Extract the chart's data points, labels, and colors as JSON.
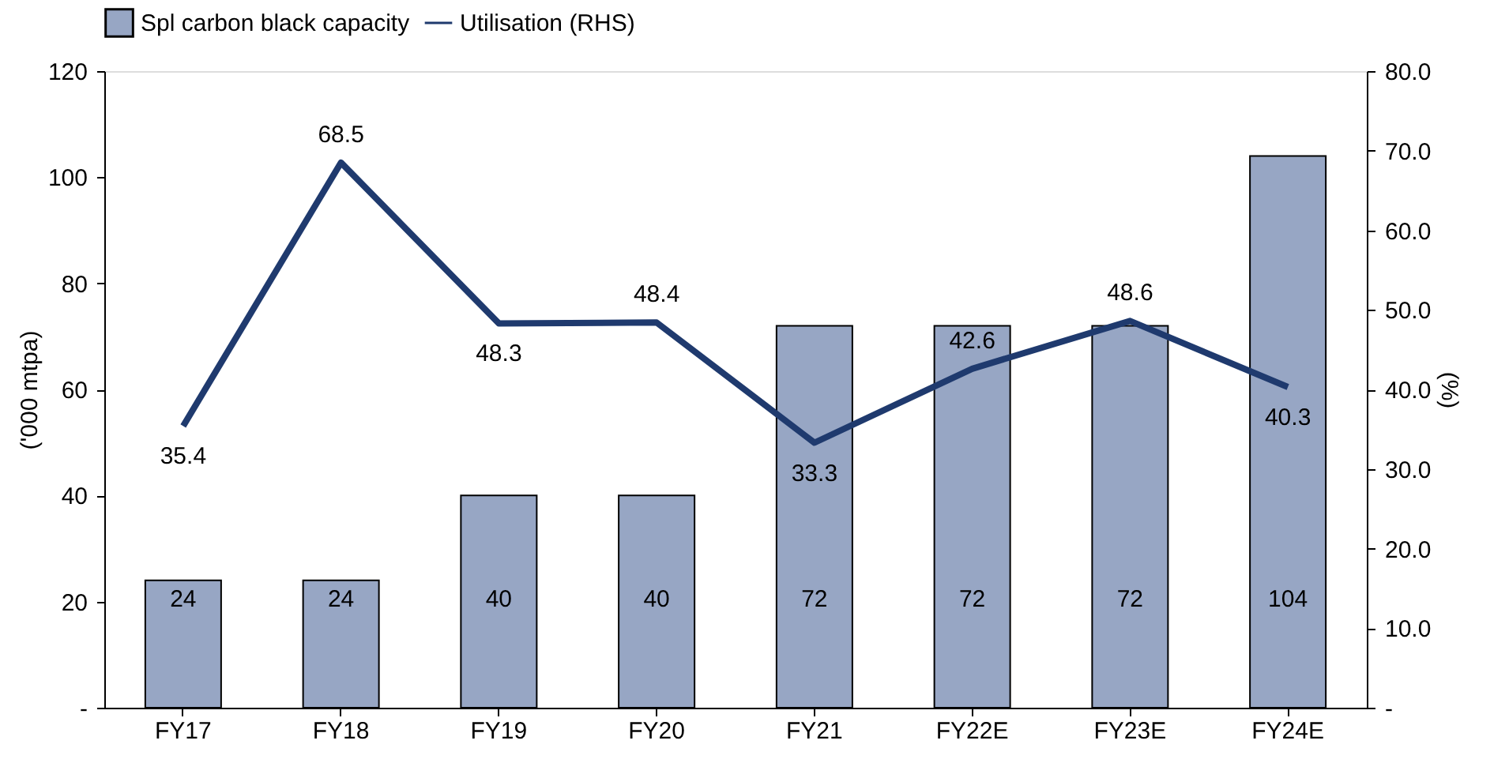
{
  "chart_data": {
    "type": "bar",
    "categories": [
      "FY17",
      "FY18",
      "FY19",
      "FY20",
      "FY21",
      "FY22E",
      "FY23E",
      "FY24E"
    ],
    "ylabel": "('000 mtpa)",
    "y2label": "(%)",
    "ylim": [
      0,
      120
    ],
    "yticks": [
      {
        "value": 0,
        "label": "-"
      },
      20,
      40,
      60,
      80,
      100,
      120
    ],
    "y2lim": [
      0,
      80
    ],
    "y2ticks": [
      {
        "value": 0,
        "label": "-"
      },
      {
        "value": 10,
        "label": "10.0"
      },
      {
        "value": 20,
        "label": "20.0"
      },
      {
        "value": 30,
        "label": "30.0"
      },
      {
        "value": 40,
        "label": "40.0"
      },
      {
        "value": 50,
        "label": "50.0"
      },
      {
        "value": 60,
        "label": "60.0"
      },
      {
        "value": 70,
        "label": "70.0"
      },
      {
        "value": 80,
        "label": "80.0"
      }
    ],
    "series": [
      {
        "name": "Spl carbon black capacity",
        "color": "#97a6c4",
        "values": [
          24,
          24,
          40,
          40,
          72,
          72,
          72,
          104
        ]
      },
      {
        "name": "Utilisation (RHS)",
        "type": "line",
        "axis": "y2",
        "color": "#1f3a6e",
        "values": [
          35.4,
          68.5,
          48.3,
          48.4,
          33.3,
          42.6,
          48.6,
          40.3
        ]
      }
    ],
    "data_labels": true,
    "legend": "top",
    "grid": false
  }
}
